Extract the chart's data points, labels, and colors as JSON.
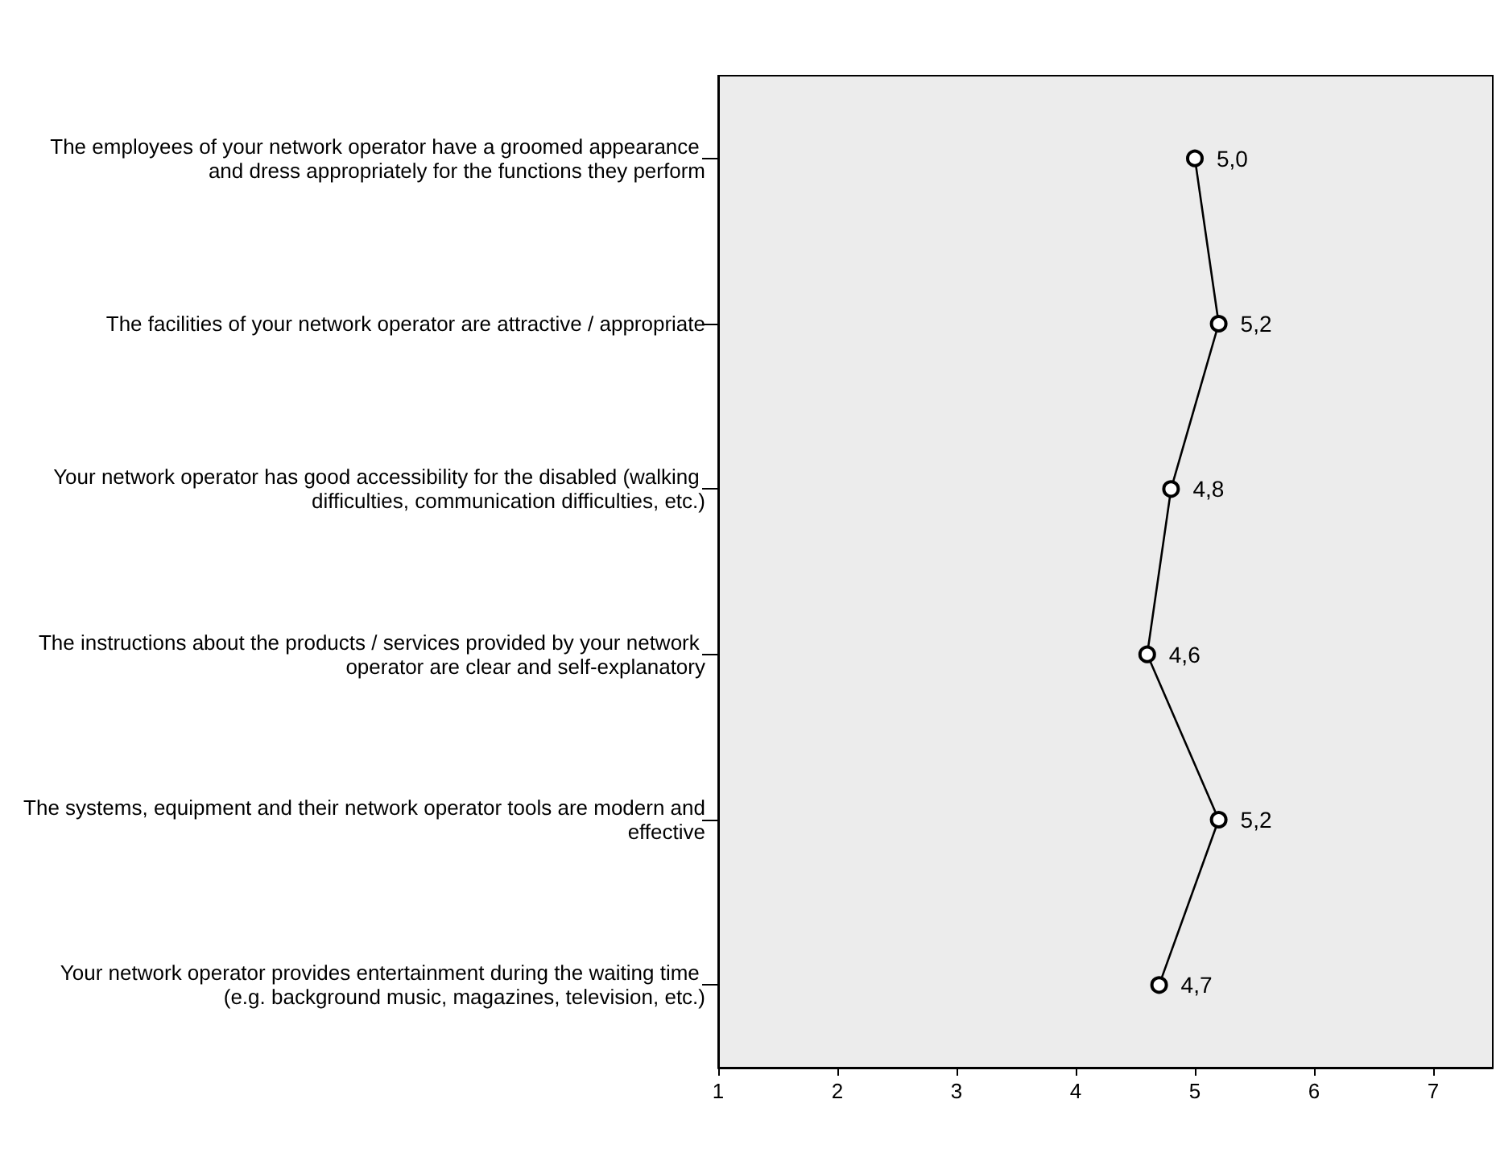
{
  "chart_data": {
    "type": "line",
    "orientation": "horizontal",
    "categories": [
      "The employees of your network operator have a groomed appearance and dress appropriately for the functions they perform",
      "The facilities of your network operator are attractive / appropriate",
      "Your network operator has good accessibility for the disabled (walking difficulties, communication difficulties, etc.)",
      "The instructions about the products / services provided by your network operator are clear and self-explanatory",
      "The systems, equipment and their network operator tools are modern and effective",
      "Your network operator provides entertainment during the waiting time (e.g. background music, magazines, television, etc.)"
    ],
    "values": [
      5.0,
      5.2,
      4.8,
      4.6,
      5.2,
      4.7
    ],
    "value_labels": [
      "5,0",
      "5,2",
      "4,8",
      "4,6",
      "5,2",
      "4,7"
    ],
    "color": "#000000",
    "marker": "circle",
    "line_style": "solid",
    "xlim": [
      1,
      7.5
    ],
    "xticks": [
      1,
      2,
      3,
      4,
      5,
      6,
      7
    ],
    "grid": false
  }
}
